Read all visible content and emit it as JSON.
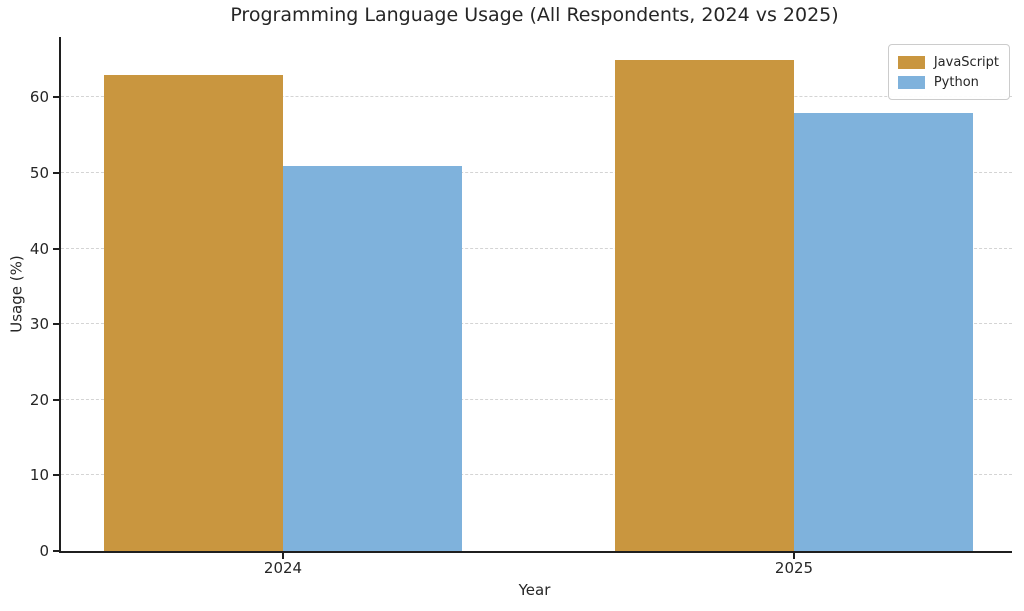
{
  "chart_data": {
    "type": "bar",
    "title": "Programming Language Usage (All Respondents, 2024 vs 2025)",
    "xlabel": "Year",
    "ylabel": "Usage (%)",
    "categories": [
      "2024",
      "2025"
    ],
    "series": [
      {
        "name": "JavaScript",
        "values": [
          63,
          65
        ],
        "color": "#C9963F"
      },
      {
        "name": "Python",
        "values": [
          51,
          58
        ],
        "color": "#7FB2DC"
      }
    ],
    "yticks": [
      0,
      10,
      20,
      30,
      40,
      50,
      60
    ],
    "ylim": [
      0,
      68
    ],
    "grid": "horizontal-dashed",
    "legend_position": "upper-right",
    "bar_group_gap": "grouped bars touching within group"
  }
}
